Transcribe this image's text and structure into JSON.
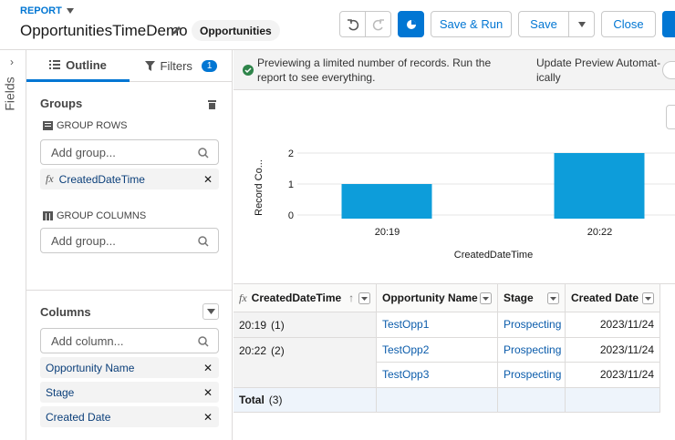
{
  "header": {
    "object_type": "REPORT",
    "report_name": "OpportunitiesTimeDemo",
    "report_type": "Opportunities",
    "buttons": [
      "Save & Run",
      "Save",
      "Close"
    ]
  },
  "sidebar": {
    "fields_tab": "Fields"
  },
  "outline_panel": {
    "tabs": [
      {
        "label": "Outline"
      },
      {
        "label": "Filters",
        "badge": 1
      }
    ],
    "groups_heading": "Groups",
    "group_rows_label": "GROUP ROWS",
    "group_rows_placeholder": "Add group...",
    "group_rows": [
      "CreatedDateTime"
    ],
    "group_columns_label": "GROUP COLUMNS",
    "group_columns_placeholder": "Add group...",
    "columns_heading": "Columns",
    "columns_placeholder": "Add column...",
    "columns": [
      "Opportunity Name",
      "Stage",
      "Created Date"
    ]
  },
  "preview_banner": {
    "message": "Previewing a limited number of records. Run the report to see everything.",
    "toggle_label": "Update Preview Automat-ically"
  },
  "chart_data": {
    "type": "bar",
    "categories": [
      "20:19",
      "20:22"
    ],
    "values": [
      1,
      2
    ],
    "color": "#0d9dda",
    "ylim": [
      0,
      2
    ],
    "yticks": [
      0,
      1,
      2
    ],
    "grid": true,
    "x_label": "CreatedDateTime",
    "y_label": "Record Co..."
  },
  "table": {
    "columns": [
      "CreatedDateTime",
      "Opportunity Name",
      "Stage",
      "Created Date"
    ],
    "groups": [
      {
        "label": "20:19",
        "count": "(1)",
        "rows": [
          [
            "TestOpp1",
            "Prospecting",
            "2023/11/24"
          ]
        ]
      },
      {
        "label": "20:22",
        "count": "(2)",
        "rows": [
          [
            "TestOpp2",
            "Prospecting",
            "2023/11/24"
          ],
          [
            "TestOpp3",
            "Prospecting",
            "2023/11/24"
          ]
        ]
      }
    ],
    "total": {
      "label": "Total",
      "count": "(3)"
    }
  }
}
